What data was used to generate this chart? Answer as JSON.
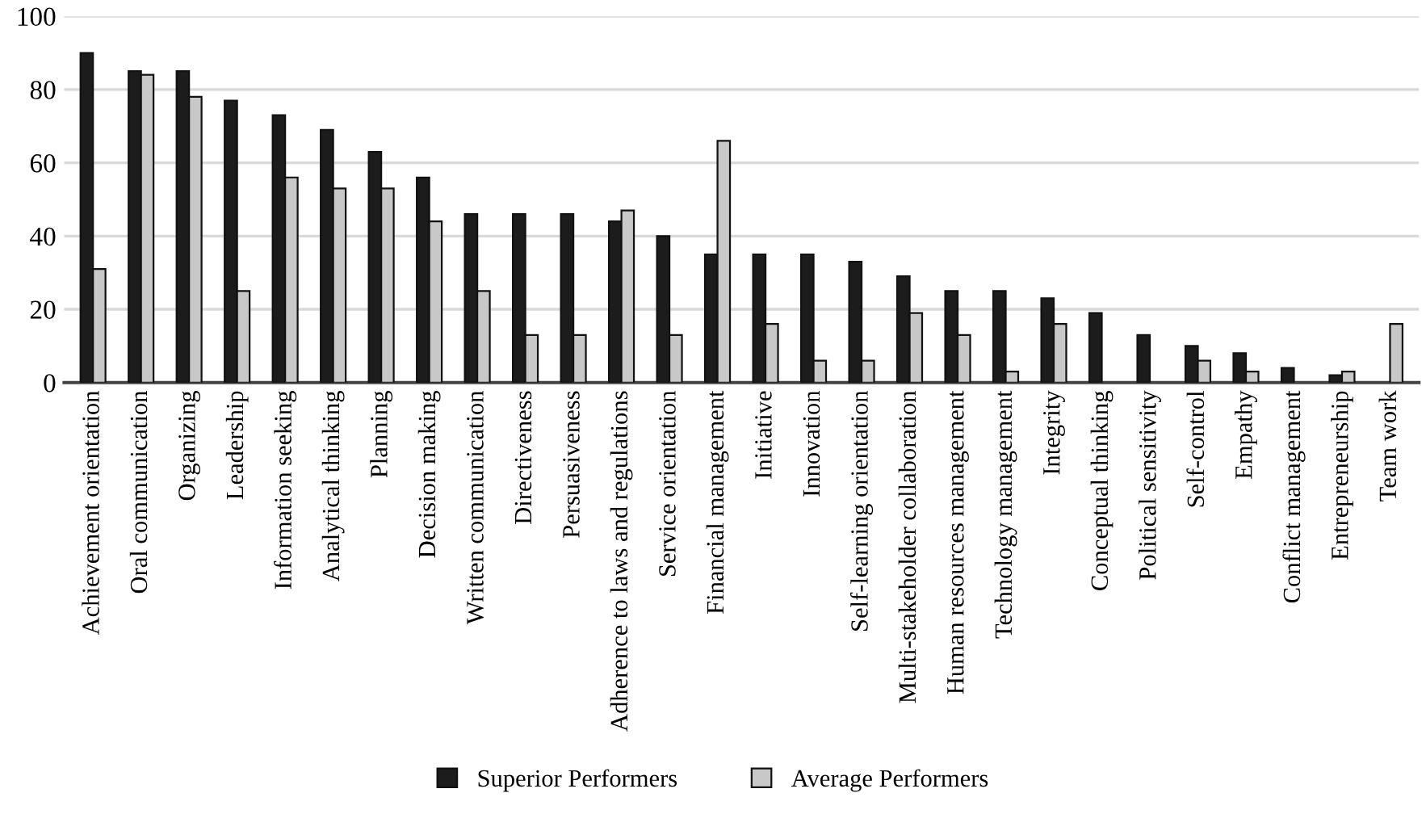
{
  "chart_data": {
    "type": "bar",
    "categories": [
      "Achievement orientation",
      "Oral communication",
      "Organizing",
      "Leadership",
      "Information seeking",
      "Analytical thinking",
      "Planning",
      "Decision making",
      "Written communication",
      "Directiveness",
      "Persuasiveness",
      "Adherence to laws and regulations",
      "Service orientation",
      "Financial management",
      "Initiative",
      "Innovation",
      "Self-learning orientation",
      "Multi-stakeholder collaboration",
      "Human resources management",
      "Technology management",
      "Integrity",
      "Conceptual thinking",
      "Political sensitivity",
      "Self-control",
      "Empathy",
      "Conflict management",
      "Entrepreneurship",
      "Team work"
    ],
    "series": [
      {
        "name": "Superior Performers",
        "color": "#1c1c1c",
        "values": [
          90,
          85,
          85,
          77,
          73,
          69,
          63,
          56,
          46,
          46,
          46,
          44,
          40,
          35,
          35,
          35,
          33,
          29,
          25,
          25,
          23,
          19,
          13,
          10,
          8,
          4,
          2,
          0
        ]
      },
      {
        "name": "Average Performers",
        "color": "#c8c8c8",
        "values": [
          31,
          84,
          78,
          25,
          56,
          53,
          53,
          44,
          25,
          13,
          13,
          47,
          13,
          66,
          16,
          6,
          6,
          19,
          13,
          3,
          16,
          0,
          0,
          6,
          3,
          0,
          3,
          16
        ]
      }
    ],
    "ylim": [
      0,
      100
    ],
    "yticks": [
      0,
      20,
      40,
      60,
      80,
      100
    ],
    "grid": "y",
    "legend": "bottom"
  }
}
